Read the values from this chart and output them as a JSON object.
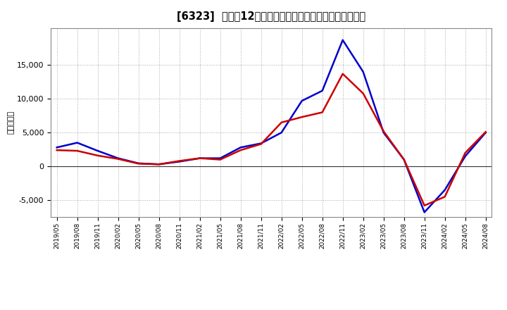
{
  "title": "[6323]  利益だ12か月移動合計の対前年同期増減額の推移",
  "ylabel": "（百万円）",
  "background_color": "#ffffff",
  "plot_bg_color": "#ffffff",
  "grid_color": "#aaaaaa",
  "x_labels": [
    "2019/05",
    "2019/08",
    "2019/11",
    "2020/02",
    "2020/05",
    "2020/08",
    "2020/11",
    "2021/02",
    "2021/05",
    "2021/08",
    "2021/11",
    "2022/02",
    "2022/05",
    "2022/08",
    "2022/11",
    "2023/02",
    "2023/05",
    "2023/08",
    "2023/11",
    "2024/02",
    "2024/05",
    "2024/08"
  ],
  "blue_values": [
    2800,
    3500,
    2300,
    1200,
    450,
    300,
    700,
    1200,
    1200,
    2800,
    3400,
    5000,
    9700,
    11200,
    18700,
    14000,
    5000,
    1000,
    -6800,
    -3500,
    1500,
    5000
  ],
  "red_values": [
    2400,
    2300,
    1600,
    1100,
    400,
    300,
    800,
    1200,
    1000,
    2400,
    3300,
    6500,
    7300,
    8000,
    13700,
    10800,
    5200,
    1000,
    -5800,
    -4500,
    2000,
    5100
  ],
  "blue_color": "#0000cc",
  "red_color": "#cc0000",
  "line_width": 1.8,
  "ylim_min": -7500,
  "ylim_max": 20500,
  "yticks": [
    -5000,
    0,
    5000,
    10000,
    15000
  ]
}
